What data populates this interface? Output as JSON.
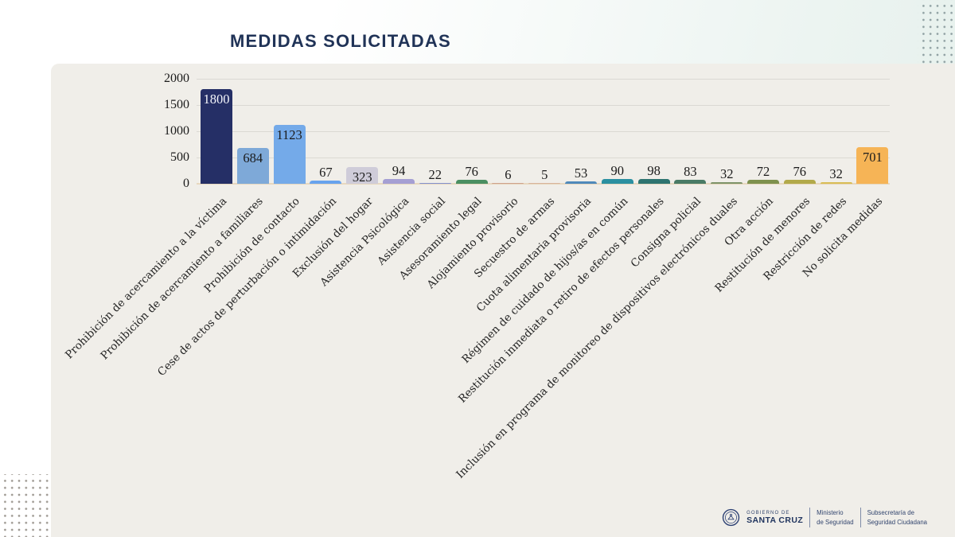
{
  "title": "MEDIDAS SOLICITADAS",
  "chart_data": {
    "type": "bar",
    "title": "MEDIDAS SOLICITADAS",
    "categories": [
      "Prohibición de acercamiento a la víctima",
      "Prohibición de acercamiento a familiares",
      "Prohibición de contacto",
      "Cese de actos de perturbación o intimidación",
      "Exclusión del hogar",
      "Asistencia Psicológica",
      "Asistencia social",
      "Asesoramiento legal",
      "Alojamiento provisorio",
      "Secuestro de armas",
      "Cuota alimentaria provisoria",
      "Régimen de cuidado de hijos/as en común",
      "Restitución inmediata o retiro de efectos personales",
      "Consigna policial",
      "Inclusión en programa de monitoreo de dispositivos electrónicos duales",
      "Otra acción",
      "Restitución de menores",
      "Restricción de redes",
      "No solicita medidas"
    ],
    "values": [
      1800,
      684,
      1123,
      67,
      323,
      94,
      22,
      76,
      6,
      5,
      53,
      90,
      98,
      83,
      32,
      72,
      76,
      32,
      701
    ],
    "colors": [
      "#252f66",
      "#7ea9d8",
      "#74aae9",
      "#68a3ee",
      "#cfccd9",
      "#a59fd3",
      "#8390cf",
      "#4b8f62",
      "#cfa18c",
      "#d8b49b",
      "#4f89ba",
      "#2b90a1",
      "#2e7470",
      "#4a7b66",
      "#7d9368",
      "#7e914e",
      "#b2a94a",
      "#d9bc55",
      "#f6b456"
    ],
    "ylim": [
      0,
      2000
    ],
    "yticks": [
      0,
      500,
      1000,
      1500,
      2000
    ],
    "grid": true,
    "value_labels": true,
    "xlabel": "",
    "ylabel": ""
  },
  "footer": {
    "gobierno_de": "GOBIERNO DE",
    "santa_cruz": "SANTA CRUZ",
    "ministerio_line1": "Ministerio",
    "ministerio_line2": "de Seguridad",
    "subsecretaria_line1": "Subsecretaría de",
    "subsecretaria_line2": "Seguridad Ciudadana"
  }
}
